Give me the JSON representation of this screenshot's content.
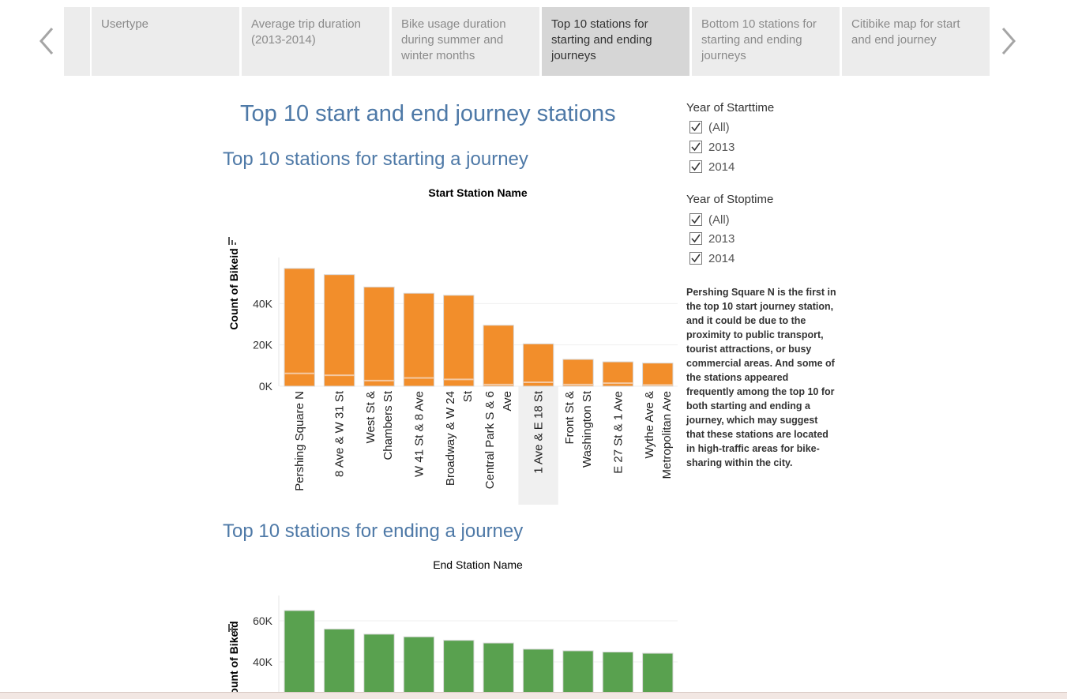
{
  "nav": {
    "prev_icon": "chevron-left-icon",
    "next_icon": "chevron-right-icon",
    "tabs": [
      {
        "label": "Usertype"
      },
      {
        "label": "Average trip duration (2013-2014)"
      },
      {
        "label": "Bike usage duration during summer and winter months"
      },
      {
        "label": "Top 10 stations for starting and ending journeys",
        "active": true
      },
      {
        "label": "Bottom 10 stations for starting and ending journeys"
      },
      {
        "label": "Citibike map for start and end journey"
      }
    ]
  },
  "dashboard": {
    "title": "Top 10 start and end journey stations",
    "start_section_title": "Top 10 stations for starting a journey",
    "end_section_title": "Top 10 stations for ending a journey"
  },
  "filters": {
    "start": {
      "title": "Year of Starttime",
      "options": [
        {
          "label": "(All)",
          "checked": true
        },
        {
          "label": "2013",
          "checked": true
        },
        {
          "label": "2014",
          "checked": true
        }
      ]
    },
    "stop": {
      "title": "Year of Stoptime",
      "options": [
        {
          "label": "(All)",
          "checked": true
        },
        {
          "label": "2013",
          "checked": true
        },
        {
          "label": "2014",
          "checked": true
        }
      ]
    }
  },
  "note": "Pershing Square N is the first in the top 10 start journey station, and it could be due to the proximity to public transport, tourist attractions, or busy commercial areas. And some of the stations appeared frequently among the top 10 for both starting and ending a journey, which may suggest that these stations are located in high-traffic areas for bike-sharing within the city.",
  "colors": {
    "start_bar": "#f28e2b",
    "end_bar": "#59a14f",
    "title": "#4e79a7",
    "highlight": "#f0f0f0"
  },
  "chart_data": [
    {
      "type": "bar",
      "title": "Start Station Name",
      "ylabel": "Count of Bikeid",
      "categories": [
        "Pershing Square N",
        "8 Ave & W 31 St",
        "West St & Chambers St",
        "W 41 St & 8 Ave",
        "Broadway & W 24 St",
        "Central Park S & 6 Ave",
        "1 Ave & E 18 St",
        "Front St & Washington St",
        "E 27 St & 1 Ave",
        "Wythe Ave & Metropolitan Ave"
      ],
      "category_lines": [
        [
          "Pershing Square N"
        ],
        [
          "8 Ave & W 31 St"
        ],
        [
          "West St &",
          "Chambers St"
        ],
        [
          "W 41 St & 8 Ave"
        ],
        [
          "Broadway & W 24",
          "St"
        ],
        [
          "Central Park S & 6",
          "Ave"
        ],
        [
          "1 Ave & E 18 St"
        ],
        [
          "Front St &",
          "Washington St"
        ],
        [
          "E 27 St & 1 Ave"
        ],
        [
          "Wythe Ave &",
          "Metropolitan Ave"
        ]
      ],
      "series": [
        {
          "values": [
            57000,
            54000,
            48000,
            45000,
            44000,
            29500,
            20500,
            13000,
            11800,
            11200
          ]
        }
      ],
      "segment_line_values": [
        6200,
        5300,
        2700,
        4000,
        3300,
        800,
        1900,
        800,
        1500,
        600
      ],
      "highlighted_category": "1 Ave & E 18 St",
      "yticks": [
        {
          "value": 40000,
          "label": "40K"
        },
        {
          "value": 20000,
          "label": "20K"
        },
        {
          "value": 0,
          "label": "0K"
        }
      ],
      "ylim": [
        0,
        60000
      ],
      "grid": true
    },
    {
      "type": "bar",
      "title": "End Station Name",
      "ylabel": "Count of Bikeid",
      "series": [
        {
          "values": [
            65000,
            56000,
            53500,
            52200,
            50500,
            49200,
            46200,
            45400,
            44800,
            44200
          ]
        }
      ],
      "yticks": [
        {
          "value": 60000,
          "label": "60K"
        },
        {
          "value": 40000,
          "label": "40K"
        }
      ],
      "ylim": [
        10000,
        70000
      ],
      "grid": true
    }
  ]
}
